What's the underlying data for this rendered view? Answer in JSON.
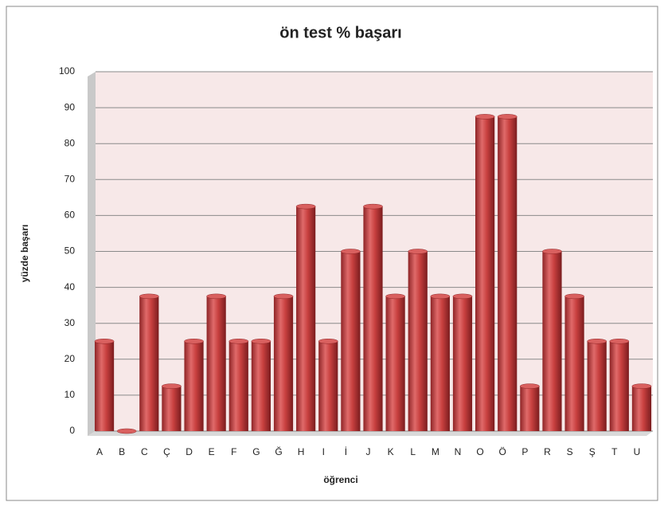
{
  "chart_data": {
    "type": "bar",
    "title": "ön test % başarı",
    "x_label": "öğrenci",
    "y_label": "yüzde başarı",
    "categories": [
      "A",
      "B",
      "C",
      "Ç",
      "D",
      "E",
      "F",
      "G",
      "Ğ",
      "H",
      "I",
      "İ",
      "J",
      "K",
      "L",
      "M",
      "N",
      "O",
      "Ö",
      "P",
      "R",
      "S",
      "Ş",
      "T",
      "U"
    ],
    "values": [
      25,
      0,
      37.5,
      12.5,
      25,
      37.5,
      25,
      25,
      37.5,
      62.5,
      25,
      50,
      62.5,
      37.5,
      50,
      37.5,
      37.5,
      87.5,
      87.5,
      12.5,
      50,
      37.5,
      25,
      25,
      12.5
    ],
    "color": "#c0393b",
    "ylim": [
      0,
      100
    ],
    "yticks": [
      0,
      10,
      20,
      30,
      40,
      50,
      60,
      70,
      80,
      90,
      100
    ],
    "grid": true
  }
}
